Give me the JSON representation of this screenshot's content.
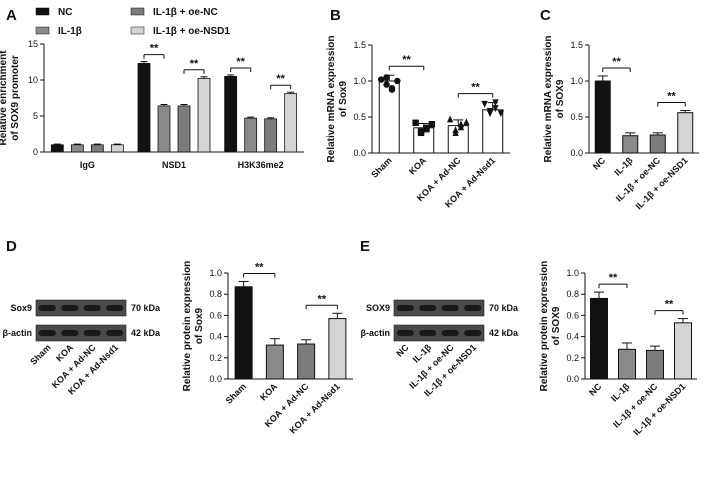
{
  "panel_labels": [
    "A",
    "B",
    "C",
    "D",
    "E"
  ],
  "significance": "**",
  "western_blots": [
    {
      "panel": "D",
      "bands": [
        "Sox9",
        "β-actin"
      ],
      "weights": [
        "70 kDa",
        "42 kDa"
      ],
      "lanes": [
        "Sham",
        "KOA",
        "KOA + Ad-NC",
        "KOA + Ad-Nsd1"
      ]
    },
    {
      "panel": "E",
      "bands": [
        "SOX9",
        "β-actin"
      ],
      "weights": [
        "70 kDa",
        "42 kDa"
      ],
      "lanes": [
        "NC",
        "IL-1β",
        "IL-1β + oe-NC",
        "IL-1β + oe-NSD1"
      ]
    }
  ],
  "chart_data": [
    {
      "panel": "A",
      "type": "bar",
      "ylabel": "Relative enrichment of SOX9 promoter",
      "ylim": [
        0,
        15
      ],
      "yticks": [
        0,
        5,
        10,
        15
      ],
      "groups": [
        "IgG",
        "NSD1",
        "H3K36me2"
      ],
      "series": [
        {
          "name": "NC",
          "color": "#111111",
          "values": [
            1.0,
            12.3,
            10.5
          ],
          "errors": [
            0.1,
            0.25,
            0.2
          ]
        },
        {
          "name": "IL-1β",
          "color": "#8a8a8a",
          "values": [
            1.0,
            6.4,
            4.7
          ],
          "errors": [
            0.1,
            0.2,
            0.15
          ]
        },
        {
          "name": "IL-1β + oe-NC",
          "color": "#7c7c7c",
          "values": [
            1.0,
            6.4,
            4.6
          ],
          "errors": [
            0.1,
            0.2,
            0.15
          ]
        },
        {
          "name": "IL-1β + oe-NSD1",
          "color": "#d4d4d4",
          "values": [
            1.0,
            10.2,
            8.1
          ],
          "errors": [
            0.1,
            0.25,
            0.2
          ]
        }
      ],
      "comparisons": [
        {
          "group": 1,
          "from": 0,
          "to": 1,
          "label": "**"
        },
        {
          "group": 1,
          "from": 2,
          "to": 3,
          "label": "**"
        },
        {
          "group": 2,
          "from": 0,
          "to": 1,
          "label": "**"
        },
        {
          "group": 2,
          "from": 2,
          "to": 3,
          "label": "**"
        }
      ]
    },
    {
      "panel": "B",
      "type": "bar",
      "ylabel": "Relative mRNA expression of Sox9",
      "ylim": [
        0,
        1.5
      ],
      "yticks": [
        0.0,
        0.5,
        1.0,
        1.5
      ],
      "categories": [
        "Sham",
        "KOA",
        "KOA + Ad-NC",
        "KOA + Ad-Nsd1"
      ],
      "values": [
        1.0,
        0.35,
        0.38,
        0.6
      ],
      "errors": [
        0.08,
        0.06,
        0.08,
        0.1
      ],
      "colors": [
        "#ffffff",
        "#ffffff",
        "#ffffff",
        "#ffffff"
      ],
      "markers": [
        "circle",
        "square",
        "triangle",
        "triangle-down"
      ],
      "points": [
        [
          1.02,
          0.95,
          0.9,
          1.05,
          0.88,
          1.0
        ],
        [
          0.42,
          0.3,
          0.35,
          0.28,
          0.33,
          0.4
        ],
        [
          0.47,
          0.32,
          0.4,
          0.28,
          0.36,
          0.43
        ],
        [
          0.68,
          0.55,
          0.62,
          0.58,
          0.7,
          0.55
        ]
      ],
      "comparisons": [
        {
          "from": 0,
          "to": 1,
          "label": "**"
        },
        {
          "from": 2,
          "to": 3,
          "label": "**"
        }
      ]
    },
    {
      "panel": "C",
      "type": "bar",
      "ylabel": "Relative mRNA expression of SOX9",
      "ylim": [
        0,
        1.5
      ],
      "yticks": [
        0.0,
        0.5,
        1.0,
        1.5
      ],
      "categories": [
        "NC",
        "IL-1β",
        "IL-1β + oe-NC",
        "IL-1β + oe-NSD1"
      ],
      "values": [
        1.0,
        0.24,
        0.25,
        0.56
      ],
      "errors": [
        0.07,
        0.04,
        0.03,
        0.03
      ],
      "colors": [
        "#111111",
        "#8a8a8a",
        "#7c7c7c",
        "#d4d4d4"
      ],
      "comparisons": [
        {
          "from": 0,
          "to": 1,
          "label": "**"
        },
        {
          "from": 2,
          "to": 3,
          "label": "**"
        }
      ]
    },
    {
      "panel": "D",
      "type": "bar",
      "ylabel": "Relative protein expression of Sox9",
      "ylim": [
        0,
        1.0
      ],
      "yticks": [
        0.0,
        0.2,
        0.4,
        0.6,
        0.8,
        1.0
      ],
      "categories": [
        "Sham",
        "KOA",
        "KOA + Ad-NC",
        "KOA + Ad-Nsd1"
      ],
      "values": [
        0.87,
        0.32,
        0.33,
        0.57
      ],
      "errors": [
        0.05,
        0.06,
        0.04,
        0.05
      ],
      "colors": [
        "#111111",
        "#8a8a8a",
        "#7c7c7c",
        "#d4d4d4"
      ],
      "comparisons": [
        {
          "from": 0,
          "to": 1,
          "label": "**"
        },
        {
          "from": 2,
          "to": 3,
          "label": "**"
        }
      ]
    },
    {
      "panel": "E",
      "type": "bar",
      "ylabel": "Relative protein expression of SOX9",
      "ylim": [
        0,
        1.0
      ],
      "yticks": [
        0.0,
        0.2,
        0.4,
        0.6,
        0.8,
        1.0
      ],
      "categories": [
        "NC",
        "IL-1β",
        "IL-1β + oe-NC",
        "IL-1β + oe-NSD1"
      ],
      "values": [
        0.76,
        0.28,
        0.27,
        0.53
      ],
      "errors": [
        0.06,
        0.06,
        0.04,
        0.04
      ],
      "colors": [
        "#111111",
        "#8a8a8a",
        "#7c7c7c",
        "#d4d4d4"
      ],
      "comparisons": [
        {
          "from": 0,
          "to": 1,
          "label": "**"
        },
        {
          "from": 2,
          "to": 3,
          "label": "**"
        }
      ]
    }
  ]
}
